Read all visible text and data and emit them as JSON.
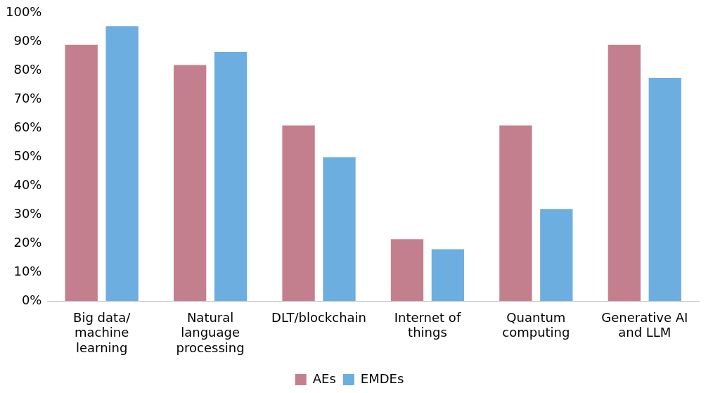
{
  "chart_data": {
    "type": "bar",
    "categories": [
      "Big data/ machine learning",
      "Natural language processing",
      "DLT/blockchain",
      "Internet of things",
      "Quantum computing",
      "Generative AI and LLM"
    ],
    "series": [
      {
        "name": "AEs",
        "color": "#c47f8f",
        "values": [
          89,
          82,
          61,
          21.5,
          61,
          89
        ]
      },
      {
        "name": "EMDEs",
        "color": "#6caee0",
        "values": [
          95.5,
          86.5,
          50,
          18,
          32,
          77.5
        ]
      }
    ],
    "ylim": [
      0,
      100
    ],
    "yticks": [
      {
        "value": 0,
        "label": "0%"
      },
      {
        "value": 10,
        "label": "10%"
      },
      {
        "value": 20,
        "label": "20%"
      },
      {
        "value": 30,
        "label": "30%"
      },
      {
        "value": 40,
        "label": "40%"
      },
      {
        "value": 50,
        "label": "50%"
      },
      {
        "value": 60,
        "label": "60%"
      },
      {
        "value": 70,
        "label": "70%"
      },
      {
        "value": 80,
        "label": "80%"
      },
      {
        "value": 90,
        "label": "90%"
      },
      {
        "value": 100,
        "label": "100%"
      }
    ],
    "grid": false,
    "legend": "bottom"
  }
}
